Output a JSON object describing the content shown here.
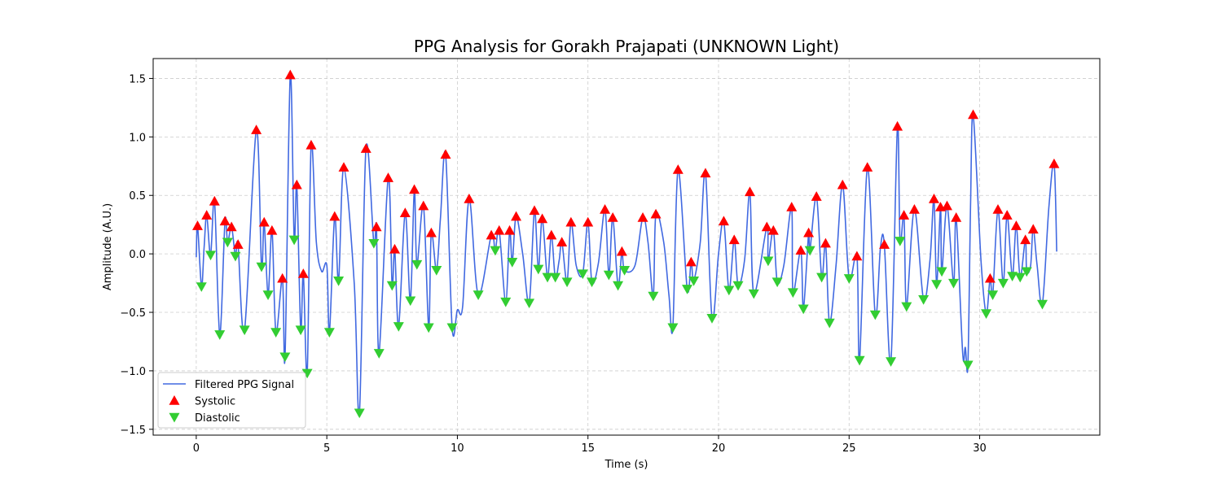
{
  "chart_data": {
    "type": "line",
    "title": "PPG Analysis for Gorakh Prajapati (UNKNOWN Light)",
    "xlabel": "Time (s)",
    "ylabel": "Amplitude (A.U.)",
    "xlim": [
      -1.65,
      34.6
    ],
    "ylim": [
      -1.55,
      1.67
    ],
    "xticks": [
      0,
      5,
      10,
      15,
      20,
      25,
      30
    ],
    "xtick_labels": [
      "0",
      "5",
      "10",
      "15",
      "20",
      "25",
      "30"
    ],
    "yticks": [
      -1.5,
      -1.0,
      -0.5,
      0.0,
      0.5,
      1.0,
      1.5
    ],
    "ytick_labels": [
      "−1.5",
      "−1.0",
      "−0.5",
      "0.0",
      "0.5",
      "1.0",
      "1.5"
    ],
    "grid": true,
    "legend_position": "lower-left",
    "colors": {
      "signal": "#4169E1",
      "systolic": "#FF0000",
      "diastolic": "#32CD32"
    },
    "legend": [
      {
        "label": "Filtered PPG Signal",
        "kind": "line"
      },
      {
        "label": "Systolic",
        "kind": "up-triangle"
      },
      {
        "label": "Diastolic",
        "kind": "down-triangle"
      }
    ],
    "series": [
      {
        "name": "Systolic",
        "x": [
          0.05,
          0.4,
          0.7,
          1.1,
          1.35,
          1.6,
          2.3,
          2.6,
          2.9,
          3.3,
          3.6,
          3.85,
          4.1,
          4.4,
          5.3,
          5.65,
          6.5,
          6.9,
          7.35,
          7.6,
          8.0,
          8.35,
          8.7,
          9.0,
          9.55,
          10.45,
          11.3,
          11.6,
          12.0,
          12.25,
          12.95,
          13.25,
          13.6,
          14.0,
          14.35,
          15.0,
          15.65,
          15.95,
          16.3,
          17.1,
          17.6,
          18.45,
          18.95,
          19.5,
          20.2,
          20.6,
          21.2,
          21.85,
          22.1,
          22.8,
          23.15,
          23.45,
          23.75,
          24.1,
          24.75,
          25.3,
          25.7,
          26.35,
          26.85,
          27.1,
          27.5,
          28.25,
          28.5,
          28.75,
          29.1,
          29.75,
          30.4,
          30.7,
          31.05,
          31.4,
          31.75,
          32.05,
          32.85
        ],
        "y": [
          0.24,
          0.33,
          0.45,
          0.28,
          0.23,
          0.08,
          1.06,
          0.27,
          0.2,
          -0.21,
          1.53,
          0.59,
          -0.17,
          0.93,
          0.32,
          0.74,
          0.9,
          0.23,
          0.65,
          0.04,
          0.35,
          0.55,
          0.41,
          0.18,
          0.85,
          0.47,
          0.16,
          0.2,
          0.2,
          0.32,
          0.37,
          0.3,
          0.16,
          0.1,
          0.27,
          0.27,
          0.38,
          0.31,
          0.02,
          0.31,
          0.34,
          0.72,
          -0.07,
          0.69,
          0.28,
          0.12,
          0.53,
          0.23,
          0.2,
          0.4,
          0.03,
          0.18,
          0.49,
          0.09,
          0.59,
          -0.02,
          0.74,
          0.08,
          1.09,
          0.33,
          0.38,
          0.47,
          0.4,
          0.41,
          0.31,
          1.19,
          -0.21,
          0.38,
          0.33,
          0.24,
          0.12,
          0.21,
          0.77
        ]
      },
      {
        "name": "Diastolic",
        "x": [
          0.2,
          0.55,
          0.9,
          1.2,
          1.5,
          1.85,
          2.5,
          2.75,
          3.05,
          3.4,
          3.75,
          4.0,
          4.25,
          5.1,
          5.45,
          6.25,
          6.8,
          7.0,
          7.5,
          7.75,
          8.2,
          8.45,
          8.9,
          9.2,
          9.8,
          10.8,
          11.45,
          11.85,
          12.1,
          12.75,
          13.1,
          13.45,
          13.75,
          14.2,
          14.8,
          15.15,
          15.8,
          16.15,
          16.4,
          17.5,
          18.25,
          18.8,
          19.05,
          19.75,
          20.4,
          20.75,
          21.35,
          21.9,
          22.25,
          22.85,
          23.25,
          23.5,
          23.95,
          24.25,
          25.0,
          25.4,
          26.0,
          26.6,
          26.95,
          27.2,
          27.85,
          28.35,
          28.55,
          29.0,
          29.55,
          30.25,
          30.5,
          30.9,
          31.25,
          31.55,
          31.8,
          32.4
        ],
        "y": [
          -0.28,
          -0.01,
          -0.69,
          0.1,
          -0.02,
          -0.65,
          -0.11,
          -0.35,
          -0.67,
          -0.88,
          0.12,
          -0.65,
          -1.02,
          -0.67,
          -0.23,
          -1.36,
          0.09,
          -0.85,
          -0.27,
          -0.62,
          -0.4,
          -0.09,
          -0.63,
          -0.14,
          -0.63,
          -0.35,
          0.03,
          -0.41,
          -0.07,
          -0.42,
          -0.13,
          -0.2,
          -0.2,
          -0.24,
          -0.17,
          -0.24,
          -0.18,
          -0.27,
          -0.14,
          -0.36,
          -0.63,
          -0.3,
          -0.23,
          -0.55,
          -0.31,
          -0.27,
          -0.34,
          -0.06,
          -0.24,
          -0.33,
          -0.47,
          0.03,
          -0.2,
          -0.59,
          -0.21,
          -0.91,
          -0.52,
          -0.92,
          0.11,
          -0.45,
          -0.39,
          -0.26,
          -0.15,
          -0.25,
          -0.95,
          -0.51,
          -0.35,
          -0.25,
          -0.19,
          -0.2,
          -0.15,
          -0.43
        ]
      }
    ],
    "signal_extra": {
      "x": [
        0.0,
        0.3,
        4.6,
        4.8,
        5.0,
        6.05,
        9.35,
        10.0,
        10.2,
        12.5,
        13.9,
        14.55,
        15.4,
        16.8,
        17.3,
        17.9,
        18.1,
        19.3,
        20.0,
        21.0,
        22.5,
        24.5,
        26.2,
        28.1,
        29.35,
        29.45,
        29.65,
        30.05,
        31.95,
        32.2,
        32.65,
        32.95
      ],
      "y": [
        -0.03,
        0.05,
        0.1,
        -0.15,
        -0.1,
        -0.25,
        0.3,
        -0.48,
        -0.45,
        0.0,
        -0.05,
        -0.1,
        -0.08,
        -0.1,
        0.1,
        0.1,
        -0.35,
        0.1,
        0.0,
        -0.05,
        -0.1,
        -0.1,
        0.05,
        -0.05,
        -0.85,
        -0.8,
        0.4,
        -0.05,
        -0.1,
        -0.1,
        0.4,
        0.02
      ]
    }
  }
}
